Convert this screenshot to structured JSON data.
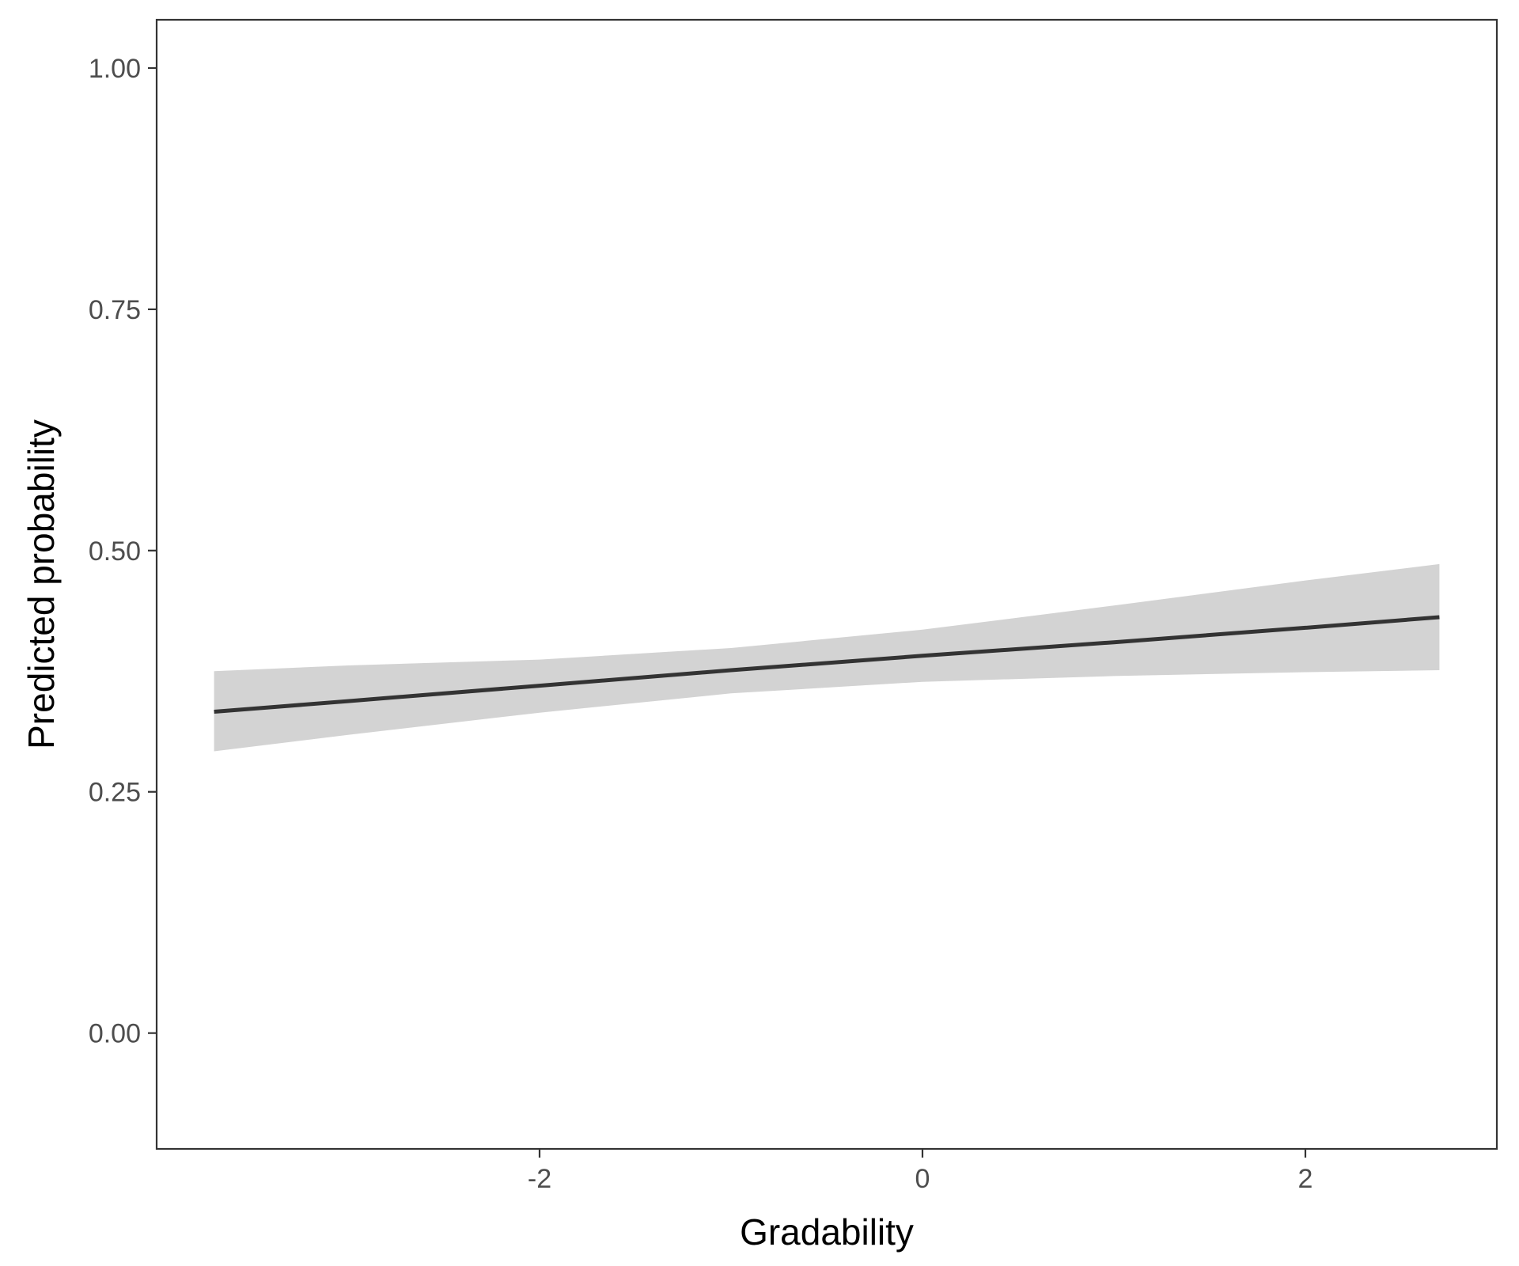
{
  "chart_data": {
    "type": "line",
    "title": "",
    "xlabel": "Gradability",
    "ylabel": "Predicted probability",
    "xlim": [
      -4.0,
      3.0
    ],
    "ylim": [
      -0.12,
      1.05
    ],
    "x_ticks": [
      -2,
      0,
      2
    ],
    "x_tick_labels": [
      "-2",
      "0",
      "2"
    ],
    "y_ticks": [
      0.0,
      0.25,
      0.5,
      0.75,
      1.0
    ],
    "y_tick_labels": [
      "0.00",
      "0.25",
      "0.50",
      "0.75",
      "1.00"
    ],
    "grid": false,
    "series": [
      {
        "x": [
          -3.7,
          -3.0,
          -2.0,
          -1.0,
          0.0,
          1.0,
          2.0,
          2.7
        ],
        "y": [
          0.333,
          0.344,
          0.36,
          0.376,
          0.391,
          0.405,
          0.42,
          0.431
        ],
        "lower": [
          0.292,
          0.309,
          0.332,
          0.352,
          0.364,
          0.37,
          0.374,
          0.376
        ],
        "upper": [
          0.375,
          0.381,
          0.387,
          0.399,
          0.418,
          0.443,
          0.469,
          0.486
        ]
      }
    ],
    "colors": {
      "line": "#333333",
      "band": "#d3d3d3",
      "frame": "#333333"
    }
  }
}
